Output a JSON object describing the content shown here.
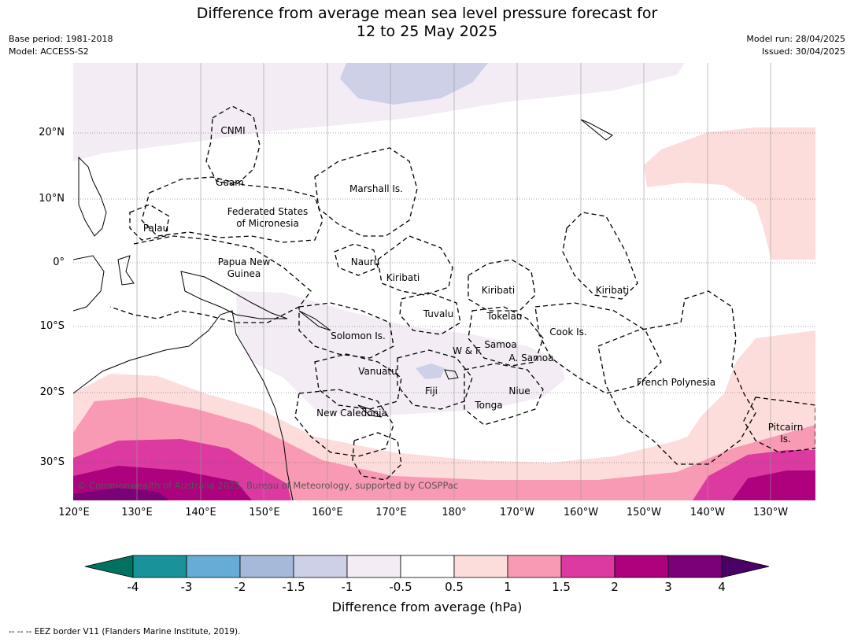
{
  "title": {
    "line1": "Difference from average mean sea level pressure forecast for",
    "line2": "12 to 25 May 2025"
  },
  "meta_left": {
    "base_period": "Base period: 1981-2018",
    "model": "Model: ACCESS-S2"
  },
  "meta_right": {
    "model_run": "Model run: 28/04/2025",
    "issued": "Issued: 30/04/2025"
  },
  "map": {
    "lat_labels": [
      "20°N",
      "10°N",
      "0°",
      "10°S",
      "20°S",
      "30°S"
    ],
    "lon_labels": [
      "120°E",
      "130°E",
      "140°E",
      "150°E",
      "160°E",
      "170°E",
      "180°",
      "170°W",
      "160°W",
      "150°W",
      "140°W",
      "130°W"
    ],
    "regions": {
      "cnmi": "CNMI",
      "guam": "Guam",
      "marshall": "Marshall Is.",
      "fsm_line1": "Federated States",
      "fsm_line2": "of Micronesia",
      "palau": "Palau",
      "png_line1": "Papua New",
      "png_line2": "Guinea",
      "nauru": "Nauru",
      "kiribati_west": "Kiribati",
      "kiribati_central": "Kiribati",
      "kiribati_east": "Kiribati",
      "tuvalu": "Tuvalu",
      "tokelau": "Tokelau",
      "cook": "Cook Is.",
      "solomon": "Solomon Is.",
      "wf": "W & F",
      "samoa": "Samoa",
      "asamoa": "A. Samoa",
      "vanuatu": "Vanuatu",
      "fiji": "Fiji",
      "niue": "Niue",
      "tonga": "Tonga",
      "french_polynesia": "French Polynesia",
      "new_caledonia": "New Caledonia",
      "pitcairn_line1": "Pitcairn",
      "pitcairn_line2": "Is."
    },
    "credit": "© Commonwealth of Australia 2025, Bureau of Meteorology, supported by COSPPac",
    "colors": {
      "c_m4": "#00725f",
      "c_m3": "#1a9299",
      "c_m2": "#66acd6",
      "c_m15": "#a6b9d9",
      "c_m1": "#cdd0e6",
      "c_m05": "#f3ecf5",
      "c_0": "#ffffff",
      "c_05": "#fddcdc",
      "c_1": "#f99ab4",
      "c_15": "#dc3aa0",
      "c_2": "#ad017e",
      "c_3": "#7a0177",
      "c_4": "#4b0066"
    }
  },
  "colorbar": {
    "ticks": [
      "-4",
      "-3",
      "-2",
      "-1.5",
      "-1",
      "-0.5",
      "0.5",
      "1",
      "1.5",
      "2",
      "3",
      "4"
    ],
    "label": "Difference from average (hPa)"
  },
  "footnote": "--  --  -- EEZ border V11 (Flanders Marine Institute, 2019)."
}
